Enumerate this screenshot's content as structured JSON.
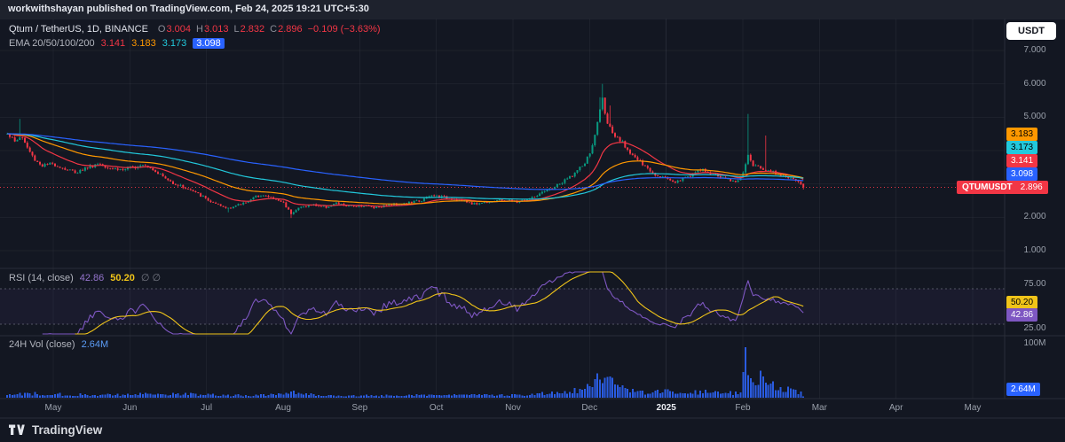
{
  "topbar": {
    "text": "workwithshayan published on TradingView.com, Feb 24, 2025 19:21 UTC+5:30"
  },
  "currency_button": "USDT",
  "legend": {
    "symbol": "Qtum / TetherUS, 1D, BINANCE",
    "ohlc": {
      "o_label": "O",
      "o": "3.004",
      "h_label": "H",
      "h": "3.013",
      "l_label": "L",
      "l": "2.832",
      "c_label": "C",
      "c": "2.896",
      "change": "−0.109 (−3.63%)"
    },
    "ema": {
      "title": "EMA 20/50/100/200",
      "v20": "3.141",
      "v50": "3.183",
      "v100": "3.173",
      "v200": "3.098"
    },
    "rsi": {
      "title": "RSI (14, close)",
      "value": "42.86",
      "ma": "50.20",
      "extra": "∅ ∅"
    },
    "vol": {
      "title": "24H Vol (close)",
      "value": "2.64M"
    }
  },
  "right_axis": {
    "ema_badges": [
      {
        "period": 50,
        "label": "3.183",
        "value": 3.183,
        "bg": "#ff9800",
        "fg": "#000000"
      },
      {
        "period": 100,
        "label": "3.173",
        "value": 3.173,
        "bg": "#22c9dc",
        "fg": "#000000"
      },
      {
        "period": 20,
        "label": "3.141",
        "value": 3.141,
        "bg": "#f23645",
        "fg": "#ffffff"
      },
      {
        "period": 200,
        "label": "3.098",
        "value": 3.098,
        "bg": "#2962ff",
        "fg": "#ffffff"
      }
    ],
    "price_badge": {
      "symbol": "QTUMUSDT",
      "label": "2.896",
      "value": 2.896,
      "bg": "#f23645"
    },
    "rsi_badges": [
      {
        "label": "50.20",
        "value": 50.2,
        "bg": "#f0c419",
        "fg": "#000000"
      },
      {
        "label": "42.86",
        "value": 42.86,
        "bg": "#7e57c2",
        "fg": "#ffffff"
      }
    ],
    "vol_badge": {
      "label": "2.64M",
      "value": 2.64,
      "bg": "#2962ff",
      "fg": "#ffffff"
    }
  },
  "footer": {
    "brand": "TradingView"
  },
  "colors": {
    "up": "#089981",
    "down": "#f23645",
    "ema20": "#f23645",
    "ema50": "#ff9800",
    "ema100": "#22c9dc",
    "ema200": "#2962ff",
    "rsi": "#7e57c2",
    "rsi_ma": "#f0c419",
    "volume": "#2e63f5"
  },
  "chart_data": {
    "type": "candlestick",
    "symbol": "QTUM/USDT",
    "exchange": "BINANCE",
    "interval": "1D",
    "title": "Qtum / TetherUS, 1D, BINANCE",
    "ohlc_current": {
      "open": 3.004,
      "high": 3.013,
      "low": 2.832,
      "close": 2.896,
      "change": -0.109,
      "change_pct": -3.63
    },
    "price_pane": {
      "axis_range": [
        1.0,
        7.0
      ],
      "gridlines": [
        1,
        2,
        3,
        4,
        5,
        6,
        7
      ],
      "axis_labels": [
        {
          "value": 7,
          "label": "7.000"
        },
        {
          "value": 6,
          "label": "6.000"
        },
        {
          "value": 5,
          "label": "5.000"
        },
        {
          "value": 2,
          "label": "2.000"
        },
        {
          "value": 1,
          "label": "1.000"
        }
      ],
      "current_price": 2.896
    },
    "series": {
      "t_start": -0.6,
      "t_end": 9.79,
      "bars": 318,
      "close_keypoints": [
        [
          -0.6,
          4.55
        ],
        [
          -0.5,
          4.25
        ],
        [
          -0.42,
          4.45
        ],
        [
          -0.33,
          4.05
        ],
        [
          -0.25,
          3.75
        ],
        [
          -0.15,
          3.55
        ],
        [
          0.0,
          3.6
        ],
        [
          0.15,
          3.45
        ],
        [
          0.3,
          3.35
        ],
        [
          0.45,
          3.5
        ],
        [
          0.6,
          3.62
        ],
        [
          0.75,
          3.48
        ],
        [
          0.9,
          3.42
        ],
        [
          1.05,
          3.5
        ],
        [
          1.18,
          3.62
        ],
        [
          1.32,
          3.42
        ],
        [
          1.5,
          3.1
        ],
        [
          1.65,
          2.95
        ],
        [
          1.8,
          2.8
        ],
        [
          1.95,
          2.62
        ],
        [
          2.1,
          2.4
        ],
        [
          2.25,
          2.28
        ],
        [
          2.4,
          2.35
        ],
        [
          2.55,
          2.5
        ],
        [
          2.7,
          2.68
        ],
        [
          2.85,
          2.58
        ],
        [
          3.0,
          2.45
        ],
        [
          3.1,
          2.12
        ],
        [
          3.22,
          2.3
        ],
        [
          3.38,
          2.38
        ],
        [
          3.55,
          2.3
        ],
        [
          3.7,
          2.42
        ],
        [
          3.85,
          2.32
        ],
        [
          4.0,
          2.36
        ],
        [
          4.2,
          2.3
        ],
        [
          4.4,
          2.38
        ],
        [
          4.6,
          2.42
        ],
        [
          4.8,
          2.5
        ],
        [
          4.95,
          2.66
        ],
        [
          5.1,
          2.6
        ],
        [
          5.3,
          2.52
        ],
        [
          5.5,
          2.4
        ],
        [
          5.7,
          2.48
        ],
        [
          5.9,
          2.52
        ],
        [
          6.05,
          2.46
        ],
        [
          6.25,
          2.58
        ],
        [
          6.45,
          2.8
        ],
        [
          6.65,
          3.05
        ],
        [
          6.82,
          3.35
        ],
        [
          6.95,
          3.65
        ],
        [
          7.05,
          4.2
        ],
        [
          7.12,
          5.1
        ],
        [
          7.17,
          5.55
        ],
        [
          7.22,
          4.95
        ],
        [
          7.3,
          4.45
        ],
        [
          7.42,
          4.25
        ],
        [
          7.55,
          3.9
        ],
        [
          7.7,
          3.55
        ],
        [
          7.85,
          3.3
        ],
        [
          8.0,
          3.18
        ],
        [
          8.12,
          3.06
        ],
        [
          8.28,
          3.22
        ],
        [
          8.45,
          3.42
        ],
        [
          8.6,
          3.3
        ],
        [
          8.75,
          3.18
        ],
        [
          8.9,
          3.06
        ],
        [
          9.0,
          3.28
        ],
        [
          9.06,
          3.85
        ],
        [
          9.12,
          3.6
        ],
        [
          9.2,
          3.5
        ],
        [
          9.3,
          3.44
        ],
        [
          9.42,
          3.34
        ],
        [
          9.55,
          3.24
        ],
        [
          9.65,
          3.12
        ],
        [
          9.75,
          3.0
        ],
        [
          9.79,
          2.9
        ]
      ],
      "high_overrides": [
        [
          -0.42,
          4.95
        ],
        [
          7.12,
          5.6
        ],
        [
          7.17,
          6.0
        ],
        [
          7.25,
          5.35
        ],
        [
          9.06,
          5.1
        ],
        [
          9.31,
          4.45
        ]
      ],
      "low_overrides": [
        [
          2.3,
          2.15
        ],
        [
          3.12,
          1.98
        ]
      ],
      "last_bar": {
        "open": 3.004,
        "high": 3.013,
        "low": 2.832,
        "close": 2.896
      }
    },
    "emas": [
      {
        "period": 20,
        "value": 3.141
      },
      {
        "period": 50,
        "value": 3.183
      },
      {
        "period": 100,
        "value": 3.173
      },
      {
        "period": 200,
        "value": 3.098
      }
    ],
    "rsi": {
      "period": 14,
      "value": 42.86,
      "ma_value": 50.2,
      "levels": [
        70,
        30
      ],
      "axis_range": [
        25,
        75
      ],
      "axis_labels": [
        {
          "value": 75,
          "label": "75.00"
        },
        {
          "value": 25,
          "label": "25.00"
        }
      ]
    },
    "volume": {
      "unit": "M",
      "current": 2.64,
      "current_label": "2.64M",
      "axis_labels": [
        {
          "value": 100,
          "label": "100M"
        }
      ],
      "keypoints": [
        [
          -0.6,
          9
        ],
        [
          0,
          7
        ],
        [
          0.5,
          6
        ],
        [
          1.0,
          6
        ],
        [
          1.3,
          8
        ],
        [
          1.7,
          7
        ],
        [
          2.0,
          6
        ],
        [
          2.3,
          5
        ],
        [
          2.6,
          5
        ],
        [
          3.0,
          6
        ],
        [
          3.12,
          13
        ],
        [
          3.4,
          5
        ],
        [
          3.8,
          4
        ],
        [
          4.2,
          4
        ],
        [
          4.6,
          5
        ],
        [
          5.0,
          6
        ],
        [
          5.4,
          5
        ],
        [
          5.8,
          5
        ],
        [
          6.1,
          6
        ],
        [
          6.5,
          9
        ],
        [
          6.8,
          13
        ],
        [
          6.95,
          18
        ],
        [
          7.05,
          26
        ],
        [
          7.15,
          40
        ],
        [
          7.25,
          34
        ],
        [
          7.4,
          18
        ],
        [
          7.6,
          13
        ],
        [
          7.8,
          10
        ],
        [
          8.0,
          12
        ],
        [
          8.2,
          9
        ],
        [
          8.45,
          12
        ],
        [
          8.7,
          9
        ],
        [
          8.9,
          9
        ],
        [
          8.98,
          14
        ],
        [
          9.04,
          100
        ],
        [
          9.08,
          60
        ],
        [
          9.12,
          38
        ],
        [
          9.18,
          30
        ],
        [
          9.25,
          42
        ],
        [
          9.32,
          28
        ],
        [
          9.42,
          22
        ],
        [
          9.55,
          18
        ],
        [
          9.65,
          14
        ],
        [
          9.79,
          10
        ]
      ],
      "overrides": [
        [
          9.04,
          100
        ]
      ],
      "last": 2.64
    },
    "time_axis": [
      {
        "label": "May",
        "t": 0
      },
      {
        "label": "Jun",
        "t": 1
      },
      {
        "label": "Jul",
        "t": 2
      },
      {
        "label": "Aug",
        "t": 3
      },
      {
        "label": "Sep",
        "t": 4
      },
      {
        "label": "Oct",
        "t": 5
      },
      {
        "label": "Nov",
        "t": 6
      },
      {
        "label": "Dec",
        "t": 7
      },
      {
        "label": "2025",
        "t": 8,
        "major": true
      },
      {
        "label": "Feb",
        "t": 9
      },
      {
        "label": "Mar",
        "t": 10
      },
      {
        "label": "Apr",
        "t": 11
      },
      {
        "label": "May",
        "t": 12
      }
    ]
  }
}
